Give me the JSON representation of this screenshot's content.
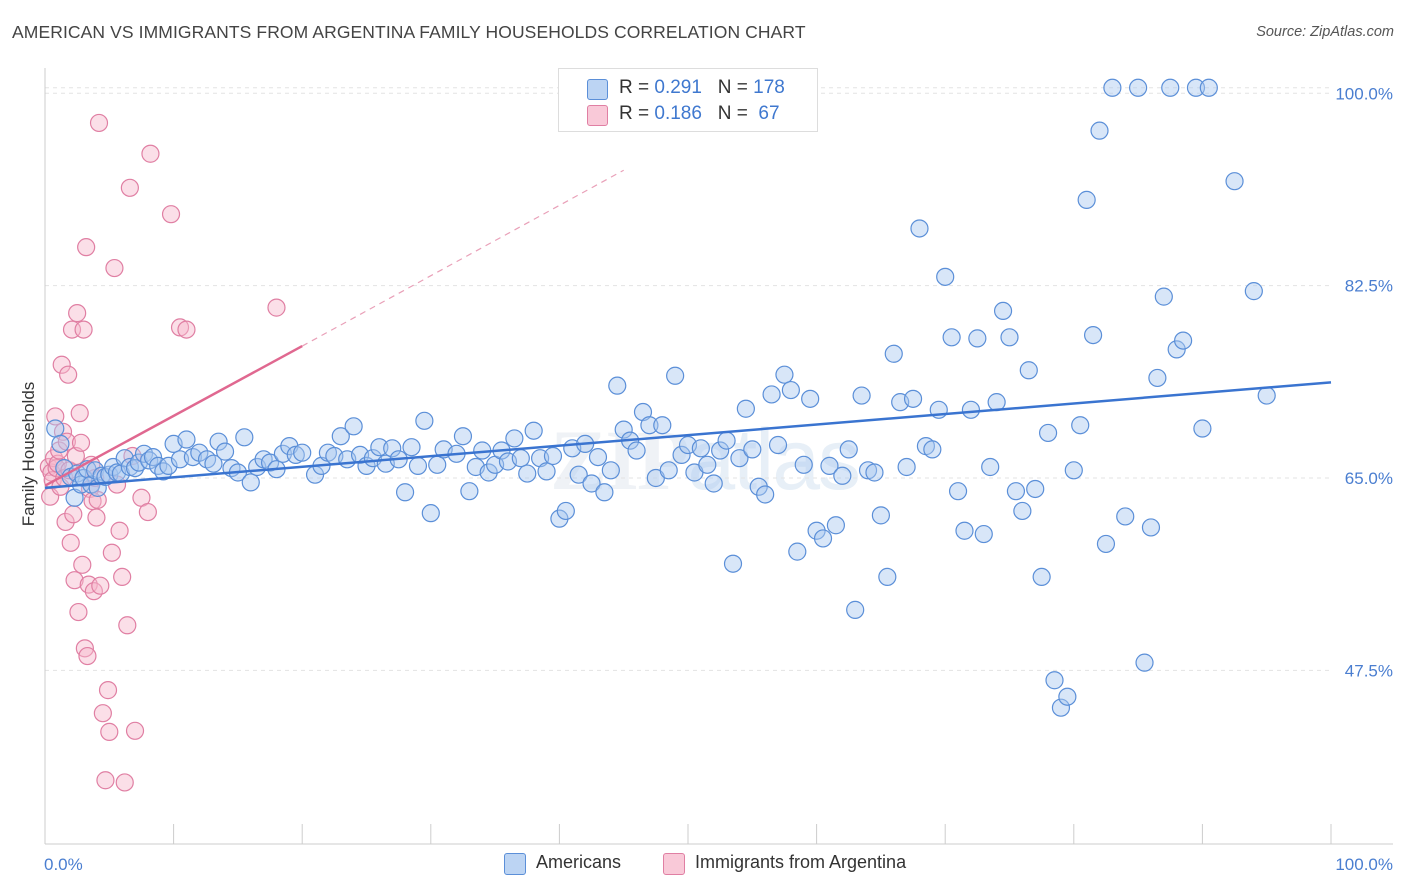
{
  "title": "AMERICAN VS IMMIGRANTS FROM ARGENTINA FAMILY HOUSEHOLDS CORRELATION CHART",
  "source": "Source: ZipAtlas.com",
  "watermark": {
    "zip": "ZIP",
    "atlas": "atlas"
  },
  "legend_top": {
    "rows": [
      {
        "r_label": "R = ",
        "r_value": "0.291",
        "n_label": "N = ",
        "n_value": "178"
      },
      {
        "r_label": "R = ",
        "r_value": "0.186",
        "n_label": "N = ",
        "n_value": " 67"
      }
    ]
  },
  "legend_bottom": {
    "americans": "Americans",
    "argentina": "Immigrants from Argentina"
  },
  "colors": {
    "americans_fill": "#a9c8f0",
    "americans_stroke": "#5b8fd8",
    "americans_line": "#3a74d0",
    "argentina_fill": "#f7b9cd",
    "argentina_stroke": "#e07fa3",
    "argentina_line": "#e06890",
    "tick_label": "#4a7ed0",
    "grid": "#e3e3e3"
  },
  "chart_data": {
    "type": "scatter",
    "title": "AMERICAN VS IMMIGRANTS FROM ARGENTINA FAMILY HOUSEHOLDS CORRELATION CHART",
    "xlabel": "",
    "ylabel": "Family Households",
    "xlim": [
      0,
      100
    ],
    "ylim": [
      31.7,
      102.3
    ],
    "x_tick_labels": [
      "0.0%",
      "100.0%"
    ],
    "y_ticks": [
      47.5,
      65.0,
      82.5,
      100.0
    ],
    "y_tick_labels": [
      "47.5%",
      "65.0%",
      "82.5%",
      "100.0%"
    ],
    "grid": true,
    "legend_placement": "top-center",
    "series": [
      {
        "name": "Americans",
        "R": 0.291,
        "N": 178,
        "trend": {
          "x": [
            0,
            100
          ],
          "y": [
            64.1,
            73.7
          ]
        },
        "points": [
          [
            0.8,
            69.5
          ],
          [
            1.2,
            68.1
          ],
          [
            1.5,
            65.9
          ],
          [
            2.0,
            65.1
          ],
          [
            2.3,
            63.2
          ],
          [
            2.5,
            65.4
          ],
          [
            2.8,
            64.4
          ],
          [
            3.0,
            65.0
          ],
          [
            3.3,
            65.8
          ],
          [
            3.6,
            64.4
          ],
          [
            3.9,
            65.7
          ],
          [
            4.1,
            64.1
          ],
          [
            4.4,
            65.2
          ],
          [
            4.7,
            65.1
          ],
          [
            5.0,
            65.3
          ],
          [
            5.3,
            66.0
          ],
          [
            5.6,
            65.5
          ],
          [
            5.9,
            65.4
          ],
          [
            6.2,
            66.8
          ],
          [
            6.6,
            66.0
          ],
          [
            7.0,
            65.9
          ],
          [
            7.3,
            66.4
          ],
          [
            7.7,
            67.2
          ],
          [
            8.1,
            66.6
          ],
          [
            8.4,
            66.9
          ],
          [
            8.8,
            66.1
          ],
          [
            9.2,
            65.6
          ],
          [
            9.6,
            66.1
          ],
          [
            10.0,
            68.1
          ],
          [
            10.5,
            66.7
          ],
          [
            11.0,
            68.5
          ],
          [
            11.5,
            66.9
          ],
          [
            12.0,
            67.3
          ],
          [
            12.6,
            66.7
          ],
          [
            13.1,
            66.3
          ],
          [
            13.5,
            68.3
          ],
          [
            14.0,
            67.4
          ],
          [
            14.5,
            65.9
          ],
          [
            15.0,
            65.5
          ],
          [
            15.5,
            68.7
          ],
          [
            16.0,
            64.6
          ],
          [
            16.5,
            66.0
          ],
          [
            17.0,
            66.7
          ],
          [
            17.5,
            66.4
          ],
          [
            18.0,
            65.8
          ],
          [
            18.5,
            67.2
          ],
          [
            19.0,
            67.9
          ],
          [
            19.5,
            67.1
          ],
          [
            20.0,
            67.3
          ],
          [
            21.0,
            65.3
          ],
          [
            21.5,
            66.1
          ],
          [
            22.0,
            67.3
          ],
          [
            22.5,
            67.0
          ],
          [
            23.0,
            68.8
          ],
          [
            23.5,
            66.7
          ],
          [
            24.0,
            69.7
          ],
          [
            24.5,
            67.1
          ],
          [
            25.0,
            66.1
          ],
          [
            25.5,
            66.8
          ],
          [
            26.0,
            67.8
          ],
          [
            26.5,
            66.3
          ],
          [
            27.0,
            67.7
          ],
          [
            27.5,
            66.7
          ],
          [
            28.0,
            63.7
          ],
          [
            28.5,
            67.8
          ],
          [
            29.0,
            66.1
          ],
          [
            29.5,
            70.2
          ],
          [
            30.0,
            61.8
          ],
          [
            30.5,
            66.2
          ],
          [
            31.0,
            67.6
          ],
          [
            32.0,
            67.2
          ],
          [
            32.5,
            68.8
          ],
          [
            33.0,
            63.8
          ],
          [
            33.5,
            66.0
          ],
          [
            34.0,
            67.5
          ],
          [
            34.5,
            65.5
          ],
          [
            35.0,
            66.2
          ],
          [
            35.5,
            67.5
          ],
          [
            36.0,
            66.5
          ],
          [
            36.5,
            68.6
          ],
          [
            37.0,
            66.8
          ],
          [
            37.5,
            65.4
          ],
          [
            38.0,
            69.3
          ],
          [
            38.5,
            66.8
          ],
          [
            39.0,
            65.6
          ],
          [
            39.5,
            67.0
          ],
          [
            40.0,
            61.3
          ],
          [
            40.5,
            62.0
          ],
          [
            41.0,
            67.7
          ],
          [
            41.5,
            65.3
          ],
          [
            42.0,
            68.1
          ],
          [
            42.5,
            64.5
          ],
          [
            43.0,
            66.9
          ],
          [
            43.5,
            63.7
          ],
          [
            44.0,
            65.7
          ],
          [
            44.5,
            73.4
          ],
          [
            45.0,
            69.4
          ],
          [
            45.5,
            68.4
          ],
          [
            46.0,
            67.5
          ],
          [
            46.5,
            71.0
          ],
          [
            47.0,
            69.8
          ],
          [
            47.5,
            65.0
          ],
          [
            48.0,
            69.8
          ],
          [
            48.5,
            65.7
          ],
          [
            49.0,
            74.3
          ],
          [
            49.5,
            67.1
          ],
          [
            50.0,
            68.0
          ],
          [
            50.5,
            65.5
          ],
          [
            51.0,
            67.7
          ],
          [
            51.5,
            66.2
          ],
          [
            52.0,
            64.5
          ],
          [
            52.5,
            67.5
          ],
          [
            53.0,
            68.4
          ],
          [
            53.5,
            57.2
          ],
          [
            54.0,
            66.8
          ],
          [
            54.5,
            71.3
          ],
          [
            55.0,
            67.6
          ],
          [
            55.5,
            64.2
          ],
          [
            56.0,
            63.5
          ],
          [
            56.5,
            72.6
          ],
          [
            57.0,
            68.0
          ],
          [
            57.5,
            74.4
          ],
          [
            58.0,
            73.0
          ],
          [
            58.5,
            58.3
          ],
          [
            59.0,
            66.2
          ],
          [
            59.5,
            72.2
          ],
          [
            60.0,
            60.2
          ],
          [
            60.5,
            59.5
          ],
          [
            61.0,
            66.1
          ],
          [
            61.5,
            60.7
          ],
          [
            62.0,
            65.2
          ],
          [
            62.5,
            67.6
          ],
          [
            63.0,
            53.0
          ],
          [
            63.5,
            72.5
          ],
          [
            64.0,
            65.7
          ],
          [
            64.5,
            65.5
          ],
          [
            65.0,
            61.6
          ],
          [
            65.5,
            56.0
          ],
          [
            66.0,
            76.3
          ],
          [
            66.5,
            71.9
          ],
          [
            67.0,
            66.0
          ],
          [
            67.5,
            72.2
          ],
          [
            68.0,
            87.7
          ],
          [
            68.5,
            67.9
          ],
          [
            69.0,
            67.6
          ],
          [
            69.5,
            71.2
          ],
          [
            70.0,
            83.3
          ],
          [
            70.5,
            77.8
          ],
          [
            71.0,
            63.8
          ],
          [
            71.5,
            60.2
          ],
          [
            72.0,
            71.2
          ],
          [
            72.5,
            77.7
          ],
          [
            73.0,
            59.9
          ],
          [
            73.5,
            66.0
          ],
          [
            74.0,
            71.9
          ],
          [
            74.5,
            80.2
          ],
          [
            75.0,
            77.8
          ],
          [
            75.5,
            63.8
          ],
          [
            76.0,
            62.0
          ],
          [
            76.5,
            74.8
          ],
          [
            77.0,
            64.0
          ],
          [
            77.5,
            56.0
          ],
          [
            78.0,
            69.1
          ],
          [
            78.5,
            46.6
          ],
          [
            79.0,
            44.1
          ],
          [
            79.5,
            45.1
          ],
          [
            80.0,
            65.7
          ],
          [
            80.5,
            69.8
          ],
          [
            81.0,
            90.3
          ],
          [
            81.5,
            78.0
          ],
          [
            82.0,
            96.6
          ],
          [
            82.5,
            59.0
          ],
          [
            83.0,
            100.5
          ],
          [
            84.0,
            61.5
          ],
          [
            85.0,
            100.5
          ],
          [
            85.5,
            48.2
          ],
          [
            86.0,
            60.5
          ],
          [
            86.5,
            74.1
          ],
          [
            87.0,
            81.5
          ],
          [
            87.5,
            100.5
          ],
          [
            88.0,
            76.7
          ],
          [
            88.5,
            77.5
          ],
          [
            89.5,
            100.5
          ],
          [
            90.0,
            69.5
          ],
          [
            90.5,
            100.5
          ],
          [
            92.5,
            92.0
          ],
          [
            94.0,
            82.0
          ],
          [
            95.0,
            72.5
          ]
        ]
      },
      {
        "name": "Immigrants from Argentina",
        "R": 0.186,
        "N": 67,
        "trend": {
          "x": [
            0,
            20
          ],
          "y": [
            64.3,
            77.0
          ]
        },
        "trend_extension": {
          "x": [
            20,
            45
          ],
          "y": [
            77.0,
            93.0
          ]
        },
        "points": [
          [
            0.3,
            66.0
          ],
          [
            0.4,
            63.3
          ],
          [
            0.5,
            65.5
          ],
          [
            0.6,
            64.8
          ],
          [
            0.7,
            66.8
          ],
          [
            0.8,
            70.6
          ],
          [
            0.9,
            65.9
          ],
          [
            1.0,
            66.3
          ],
          [
            1.1,
            67.5
          ],
          [
            1.2,
            64.2
          ],
          [
            1.3,
            75.3
          ],
          [
            1.4,
            69.2
          ],
          [
            1.5,
            65.0
          ],
          [
            1.6,
            61.0
          ],
          [
            1.7,
            68.3
          ],
          [
            1.8,
            74.4
          ],
          [
            1.9,
            65.7
          ],
          [
            2.0,
            59.1
          ],
          [
            2.1,
            78.5
          ],
          [
            2.2,
            61.7
          ],
          [
            2.3,
            55.7
          ],
          [
            2.4,
            67.0
          ],
          [
            2.5,
            80.0
          ],
          [
            2.6,
            52.8
          ],
          [
            2.7,
            70.9
          ],
          [
            2.8,
            68.2
          ],
          [
            2.9,
            57.1
          ],
          [
            3.0,
            78.5
          ],
          [
            3.1,
            49.5
          ],
          [
            3.2,
            86.0
          ],
          [
            3.3,
            48.8
          ],
          [
            3.4,
            55.3
          ],
          [
            3.5,
            64.0
          ],
          [
            3.6,
            66.2
          ],
          [
            3.7,
            62.9
          ],
          [
            3.8,
            54.7
          ],
          [
            3.9,
            65.0
          ],
          [
            4.0,
            61.4
          ],
          [
            4.1,
            63.0
          ],
          [
            4.2,
            97.3
          ],
          [
            4.3,
            55.2
          ],
          [
            4.5,
            43.6
          ],
          [
            4.7,
            37.5
          ],
          [
            4.9,
            45.7
          ],
          [
            5.0,
            41.9
          ],
          [
            5.2,
            58.2
          ],
          [
            5.4,
            84.1
          ],
          [
            5.6,
            64.4
          ],
          [
            5.8,
            60.2
          ],
          [
            6.0,
            56.0
          ],
          [
            6.2,
            37.3
          ],
          [
            6.4,
            51.6
          ],
          [
            6.6,
            91.4
          ],
          [
            6.8,
            67.0
          ],
          [
            7.0,
            42.0
          ],
          [
            7.5,
            63.2
          ],
          [
            8.0,
            61.9
          ],
          [
            8.2,
            94.5
          ],
          [
            9.8,
            89.0
          ],
          [
            10.5,
            78.7
          ],
          [
            11.0,
            78.5
          ],
          [
            18.0,
            80.5
          ]
        ]
      }
    ]
  }
}
